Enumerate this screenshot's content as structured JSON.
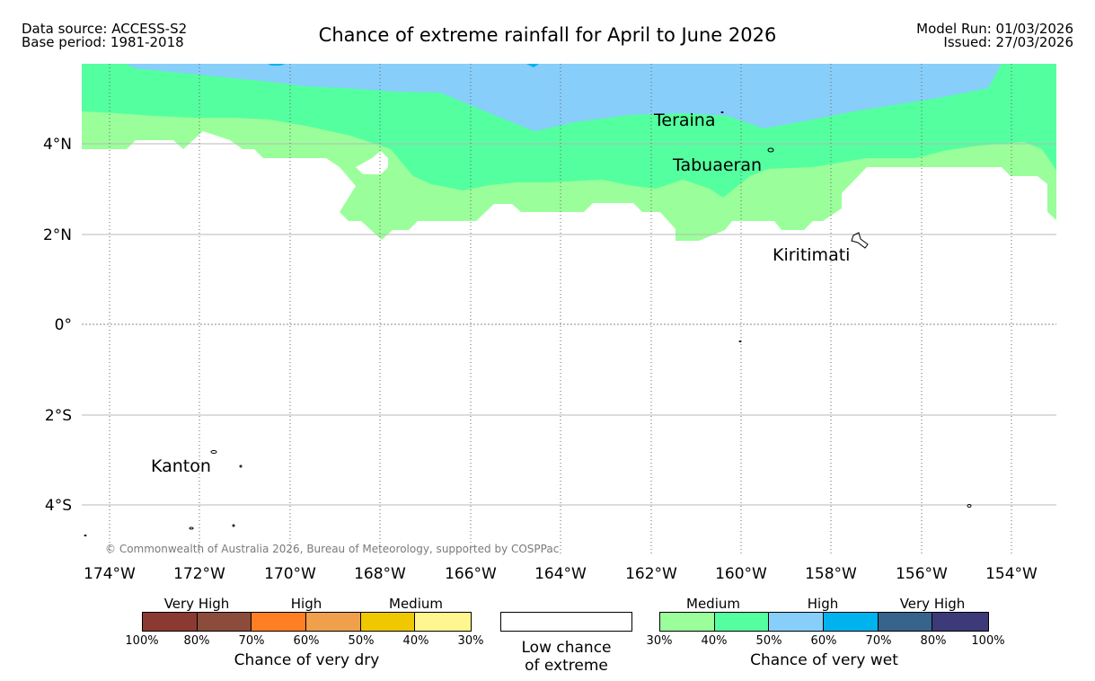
{
  "header": {
    "data_source": "Data source: ACCESS-S2",
    "base_period": "Base period: 1981-2018",
    "title": "Chance of extreme rainfall for April to June 2026",
    "model_run": "Model Run: 01/03/2026",
    "issued": "Issued: 27/03/2026"
  },
  "map": {
    "lat_labels": [
      "4°N",
      "2°N",
      "0°",
      "2°S",
      "4°S"
    ],
    "lon_labels": [
      "174°W",
      "172°W",
      "170°W",
      "168°W",
      "166°W",
      "164°W",
      "162°W",
      "160°W",
      "158°W",
      "156°W",
      "154°W"
    ],
    "places": [
      {
        "name": "Teraina"
      },
      {
        "name": "Tabuaeran"
      },
      {
        "name": "Kiritimati"
      },
      {
        "name": "Kanton"
      }
    ],
    "copyright": "© Commonwealth of Australia 2026, Bureau of Meteorology, supported by COSPPac"
  },
  "legend": {
    "dry": {
      "headers": [
        "Very High",
        "High",
        "Medium"
      ],
      "ticks": [
        "100%",
        "80%",
        "70%",
        "60%",
        "50%",
        "40%",
        "30%"
      ],
      "colors": [
        "#8b3a32",
        "#8b4c3c",
        "#ff7f24",
        "#f0a04b",
        "#f0c800",
        "#fff68f"
      ],
      "caption": "Chance of very dry"
    },
    "low": {
      "caption_line1": "Low chance",
      "caption_line2": "of extreme",
      "color": "#ffffff"
    },
    "wet": {
      "headers": [
        "Medium",
        "High",
        "Very High"
      ],
      "ticks": [
        "30%",
        "40%",
        "50%",
        "60%",
        "70%",
        "80%",
        "100%"
      ],
      "colors": [
        "#9aff9a",
        "#54ff9f",
        "#87cefa",
        "#00b2ee",
        "#36648b",
        "#3d3a79"
      ],
      "caption": "Chance of very wet"
    }
  }
}
